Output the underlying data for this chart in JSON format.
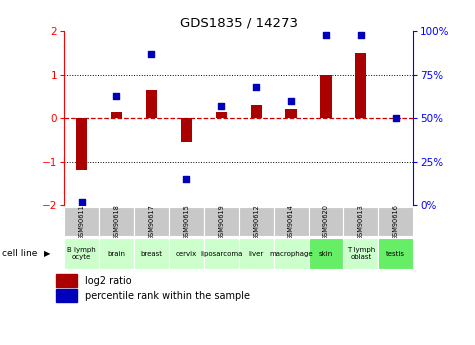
{
  "title": "GDS1835 / 14273",
  "samples": [
    "GSM90611",
    "GSM90618",
    "GSM90617",
    "GSM90615",
    "GSM90619",
    "GSM90612",
    "GSM90614",
    "GSM90620",
    "GSM90613",
    "GSM90616"
  ],
  "cell_lines": [
    "B lymph\nocyte",
    "brain",
    "breast",
    "cervix",
    "liposarcoma",
    "liver",
    "macrophage",
    "skin",
    "T lymph\noblast",
    "testis"
  ],
  "cell_line_colors": [
    "#ccffcc",
    "#ccffcc",
    "#ccffcc",
    "#ccffcc",
    "#ccffcc",
    "#ccffcc",
    "#ccffcc",
    "#66ee66",
    "#ccffcc",
    "#66ee66"
  ],
  "log2_ratio": [
    -1.2,
    0.15,
    0.65,
    -0.55,
    0.15,
    0.3,
    0.2,
    1.0,
    1.5,
    -0.02
  ],
  "percentile_rank": [
    2,
    63,
    87,
    15,
    57,
    68,
    60,
    98,
    98,
    50
  ],
  "ylim_left": [
    -2,
    2
  ],
  "bar_color": "#aa0000",
  "dot_color": "#0000bb",
  "dashed_line_color": "#cc0000",
  "legend_bar_label": "log2 ratio",
  "legend_dot_label": "percentile rank within the sample",
  "cell_line_label": "cell line",
  "right_axis_ticks": [
    0,
    25,
    50,
    75,
    100
  ],
  "right_axis_labels": [
    "0%",
    "25%",
    "50%",
    "75%",
    "100%"
  ],
  "left_yticks": [
    -2,
    -1,
    0,
    1,
    2
  ],
  "sample_box_color": "#c8c8c8",
  "sample_box_edge": "#ffffff"
}
